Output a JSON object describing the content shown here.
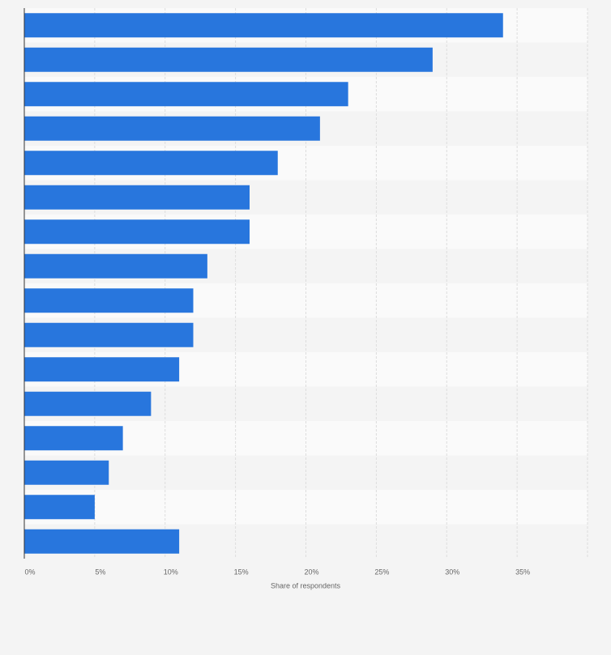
{
  "chart_data": {
    "type": "bar",
    "orientation": "horizontal",
    "x_label": "Share of respondents",
    "categories": [
      null,
      null,
      null,
      null,
      null,
      null,
      null,
      null,
      null,
      null,
      null,
      null,
      null,
      null,
      null,
      null
    ],
    "values": [
      34,
      29,
      23,
      21,
      18,
      16,
      16,
      13,
      12,
      12,
      11,
      9,
      7,
      6,
      5,
      11
    ],
    "color": "#2876dd",
    "xlim": [
      0,
      40
    ],
    "xticks": [
      {
        "value": 0,
        "label": "0%"
      },
      {
        "value": 5,
        "label": "5%"
      },
      {
        "value": 10,
        "label": "10%"
      },
      {
        "value": 15,
        "label": "15%"
      },
      {
        "value": 20,
        "label": "20%"
      },
      {
        "value": 25,
        "label": "25%"
      },
      {
        "value": 30,
        "label": "30%"
      },
      {
        "value": 35,
        "label": "35%"
      }
    ],
    "grid": true
  }
}
